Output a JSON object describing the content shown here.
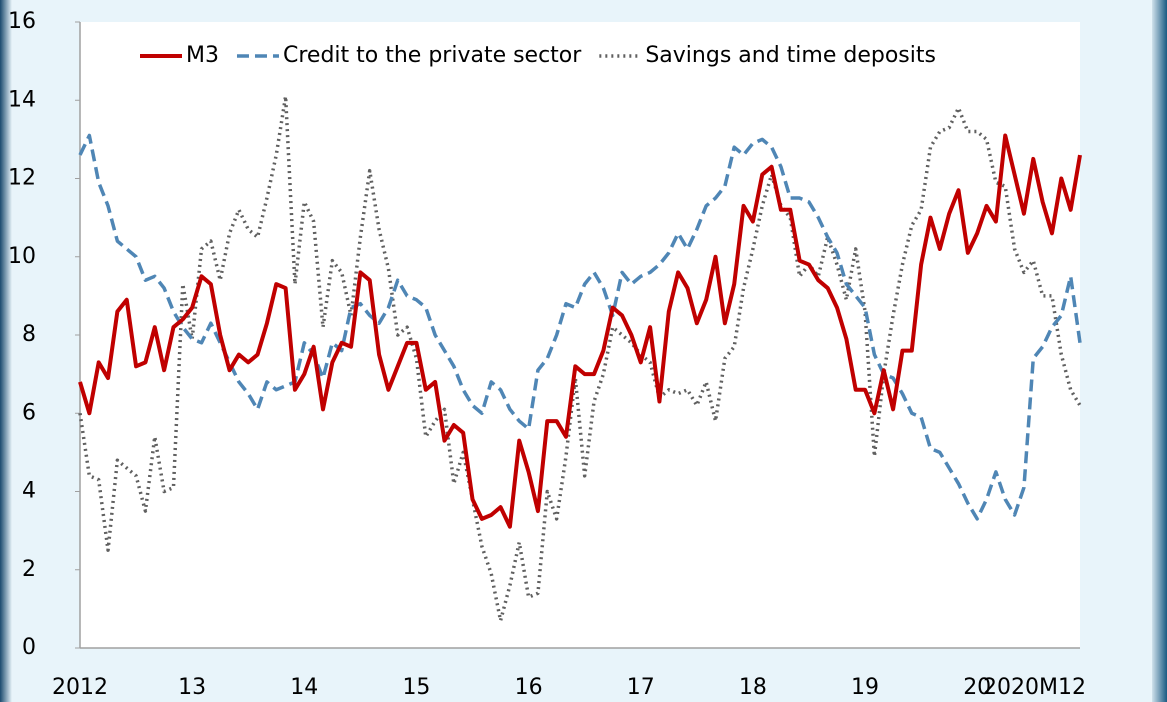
{
  "chart_data": {
    "type": "line",
    "categories": [
      "2012",
      null,
      null,
      null,
      null,
      null,
      null,
      null,
      null,
      null,
      null,
      null,
      "13",
      null,
      null,
      null,
      null,
      null,
      null,
      null,
      null,
      null,
      null,
      null,
      "14",
      null,
      null,
      null,
      null,
      null,
      null,
      null,
      null,
      null,
      null,
      null,
      "15",
      null,
      null,
      null,
      null,
      null,
      null,
      null,
      null,
      null,
      null,
      null,
      "16",
      null,
      null,
      null,
      null,
      null,
      null,
      null,
      null,
      null,
      null,
      null,
      "17",
      null,
      null,
      null,
      null,
      null,
      null,
      null,
      null,
      null,
      null,
      null,
      "18",
      null,
      null,
      null,
      null,
      null,
      null,
      null,
      null,
      null,
      null,
      null,
      "19",
      null,
      null,
      null,
      null,
      null,
      null,
      null,
      null,
      null,
      null,
      null,
      "20",
      null,
      null,
      null,
      null,
      null,
      null,
      null,
      null,
      null,
      null,
      "2020M12"
    ],
    "series": [
      {
        "name": "M3",
        "color": "#c00000",
        "dash": "solid",
        "values": [
          6.8,
          6.0,
          7.3,
          6.9,
          8.6,
          8.9,
          7.2,
          7.3,
          8.2,
          7.1,
          8.2,
          8.4,
          8.7,
          9.5,
          9.3,
          8.0,
          7.1,
          7.5,
          7.3,
          7.5,
          8.3,
          9.3,
          9.2,
          6.6,
          7.0,
          7.7,
          6.1,
          7.3,
          7.8,
          7.7,
          9.6,
          9.4,
          7.5,
          6.6,
          7.2,
          7.8,
          7.8,
          6.6,
          6.8,
          5.3,
          5.7,
          5.5,
          3.8,
          3.3,
          3.4,
          3.6,
          3.1,
          5.3,
          4.5,
          3.5,
          5.8,
          5.8,
          5.4,
          7.2,
          7.0,
          7.0,
          7.6,
          8.7,
          8.5,
          8.0,
          7.3,
          8.2,
          6.3,
          8.6,
          9.6,
          9.2,
          8.3,
          8.9,
          10.0,
          8.3,
          9.3,
          11.3,
          10.9,
          12.1,
          12.3,
          11.2,
          11.2,
          9.9,
          9.8,
          9.4,
          9.2,
          8.7,
          7.9,
          6.6,
          6.6,
          6.0,
          7.1,
          6.1,
          7.6,
          7.6,
          9.8,
          11.0,
          10.2,
          11.1,
          11.7,
          10.1,
          10.6,
          11.3,
          10.9,
          13.1,
          12.1,
          11.1,
          12.5,
          11.4,
          10.6,
          12.0,
          11.2,
          12.6
        ]
      },
      {
        "name": "Credit to the private sector",
        "color": "#4f86b5",
        "dash": "dashed",
        "values": [
          12.6,
          13.1,
          11.9,
          11.3,
          10.4,
          10.2,
          10.0,
          9.4,
          9.5,
          9.2,
          8.6,
          8.2,
          7.9,
          7.8,
          8.3,
          7.8,
          7.3,
          6.8,
          6.5,
          6.1,
          6.8,
          6.6,
          6.7,
          6.8,
          7.8,
          7.5,
          6.9,
          7.8,
          7.6,
          8.7,
          8.8,
          8.5,
          8.3,
          8.7,
          9.4,
          9.0,
          8.9,
          8.7,
          8.0,
          7.6,
          7.2,
          6.6,
          6.2,
          6.0,
          6.8,
          6.6,
          6.1,
          5.8,
          5.6,
          7.1,
          7.4,
          8.0,
          8.8,
          8.7,
          9.3,
          9.6,
          9.2,
          8.5,
          9.6,
          9.3,
          9.5,
          9.6,
          9.8,
          10.1,
          10.6,
          10.2,
          10.7,
          11.3,
          11.5,
          11.8,
          12.8,
          12.6,
          12.9,
          13.0,
          12.8,
          12.3,
          11.5,
          11.5,
          11.4,
          11.0,
          10.5,
          10.1,
          9.3,
          9.0,
          8.7,
          7.5,
          7.0,
          6.9,
          6.5,
          6.0,
          5.9,
          5.1,
          5.0,
          4.6,
          4.2,
          3.7,
          3.3,
          3.8,
          4.5,
          3.8,
          3.4,
          4.1,
          7.4,
          7.7,
          8.2,
          8.5,
          9.5,
          7.8
        ]
      },
      {
        "name": "Savings and time deposits",
        "color": "#606060",
        "dash": "dotted",
        "values": [
          6.0,
          4.4,
          4.3,
          2.5,
          4.8,
          4.6,
          4.4,
          3.5,
          5.4,
          4.0,
          4.1,
          9.3,
          7.9,
          10.2,
          10.4,
          9.4,
          10.6,
          11.2,
          10.7,
          10.5,
          11.5,
          12.6,
          14.1,
          9.3,
          11.4,
          10.9,
          8.2,
          9.9,
          9.6,
          8.5,
          10.5,
          12.2,
          10.7,
          9.7,
          8.0,
          8.2,
          7.4,
          5.4,
          5.8,
          6.1,
          4.2,
          5.0,
          3.8,
          2.6,
          1.9,
          0.7,
          1.6,
          2.7,
          1.3,
          1.4,
          4.0,
          3.3,
          4.9,
          6.9,
          4.4,
          6.3,
          7.0,
          8.2,
          8.0,
          7.8,
          7.5,
          7.3,
          6.4,
          6.6,
          6.5,
          6.6,
          6.2,
          6.8,
          5.8,
          7.4,
          7.7,
          9.2,
          10.2,
          11.3,
          12.1,
          11.3,
          11.0,
          9.5,
          9.8,
          9.5,
          10.5,
          9.8,
          8.9,
          10.2,
          8.6,
          4.9,
          7.0,
          8.5,
          9.8,
          10.8,
          11.2,
          12.8,
          13.2,
          13.3,
          13.8,
          13.2,
          13.2,
          13.0,
          11.9,
          11.8,
          10.2,
          9.6,
          9.9,
          9.0,
          9.0,
          7.5,
          6.6,
          6.2
        ]
      }
    ],
    "ylim": [
      0,
      16
    ],
    "yticks": [
      0,
      2,
      4,
      6,
      8,
      10,
      12,
      14,
      16
    ],
    "grid": false,
    "legend": "top"
  }
}
